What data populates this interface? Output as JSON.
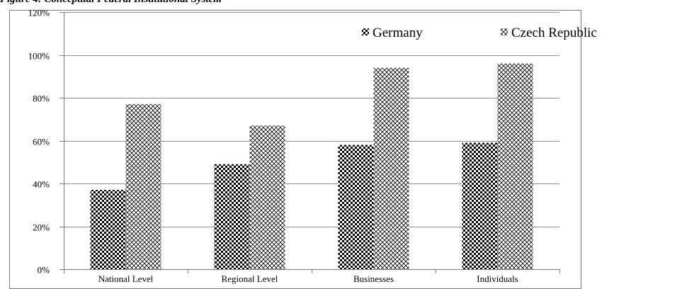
{
  "figure_caption": "Figure 4: Conceptual Federal Institutional System",
  "chart_data": {
    "type": "bar",
    "categories": [
      "National Level",
      "Regional Level",
      "Businesses",
      "Individuals"
    ],
    "series": [
      {
        "name": "Germany",
        "values": [
          37,
          49,
          58,
          59
        ],
        "pattern": "checker"
      },
      {
        "name": "Czech Republic",
        "values": [
          77,
          67,
          94,
          96
        ],
        "pattern": "crosshatch"
      }
    ],
    "y_ticks": [
      "0%",
      "20%",
      "40%",
      "60%",
      "80%",
      "100%",
      "120%"
    ],
    "ylim": [
      0,
      120
    ],
    "grid": true,
    "legend_position": "top-right",
    "colors": {
      "bar_fill": "#000000",
      "background": "#ffffff",
      "grid": "#8c8c8c",
      "axis": "#7a7a7a"
    }
  }
}
